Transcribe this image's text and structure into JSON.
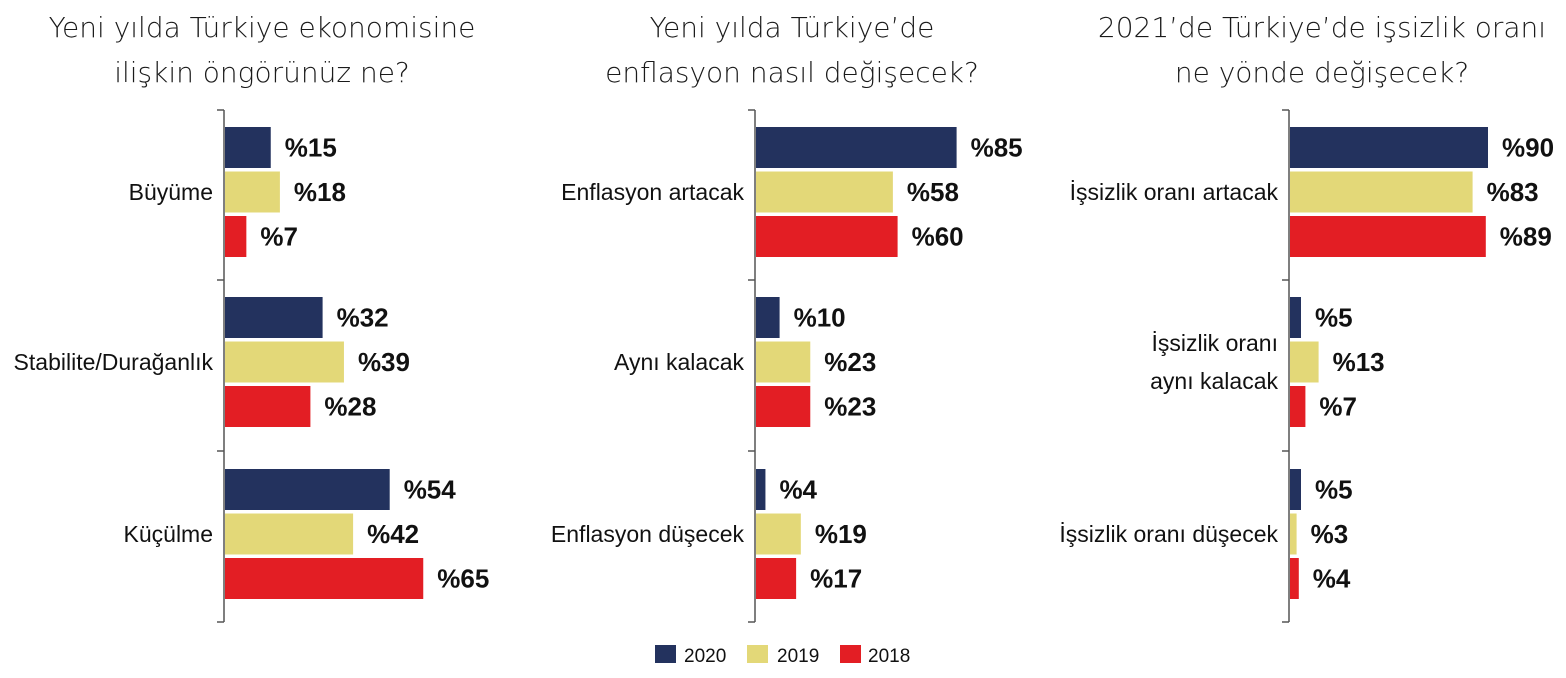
{
  "colors": {
    "2020": "#23325e",
    "2019": "#e3d878",
    "2018": "#e31e24"
  },
  "legend": [
    {
      "label": "2020",
      "color": "#23325e"
    },
    {
      "label": "2019",
      "color": "#e3d878"
    },
    {
      "label": "2018",
      "color": "#e31e24"
    }
  ],
  "chart_data": [
    {
      "type": "bar",
      "orientation": "horizontal",
      "title": [
        "Yeni yılda Türkiye ekonomisine",
        "ilişkin öngörünüz ne?"
      ],
      "categories": [
        [
          "Büyüme"
        ],
        [
          "Stabilite/Durağanlık"
        ],
        [
          "Küçülme"
        ]
      ],
      "series": [
        {
          "name": "2020",
          "values": [
            15,
            32,
            54
          ],
          "labels": [
            "%15",
            "%32",
            "%54"
          ]
        },
        {
          "name": "2019",
          "values": [
            18,
            39,
            42
          ],
          "labels": [
            "%18",
            "%39",
            "%42"
          ]
        },
        {
          "name": "2018",
          "values": [
            7,
            28,
            65
          ],
          "labels": [
            "%7",
            "%28",
            "%65"
          ]
        }
      ]
    },
    {
      "type": "bar",
      "orientation": "horizontal",
      "title": [
        "Yeni yılda Türkiye’de",
        "enflasyon nasıl değişecek?"
      ],
      "categories": [
        [
          "Enflasyon artacak"
        ],
        [
          "Aynı kalacak"
        ],
        [
          "Enflasyon düşecek"
        ]
      ],
      "series": [
        {
          "name": "2020",
          "values": [
            85,
            10,
            4
          ],
          "labels": [
            "%85",
            "%10",
            "%4"
          ]
        },
        {
          "name": "2019",
          "values": [
            58,
            23,
            19
          ],
          "labels": [
            "%58",
            "%23",
            "%19"
          ]
        },
        {
          "name": "2018",
          "values": [
            60,
            23,
            17
          ],
          "labels": [
            "%60",
            "%23",
            "%17"
          ]
        }
      ]
    },
    {
      "type": "bar",
      "orientation": "horizontal",
      "title": [
        "2021’de Türkiye’de işsizlik oranı",
        "ne yönde değişecek?"
      ],
      "categories": [
        [
          "İşsizlik oranı artacak"
        ],
        [
          "İşsizlik oranı",
          "aynı kalacak"
        ],
        [
          "İşsizlik oranı düşecek"
        ]
      ],
      "series": [
        {
          "name": "2020",
          "values": [
            90,
            5,
            5
          ],
          "labels": [
            "%90",
            "%5",
            "%5"
          ]
        },
        {
          "name": "2019",
          "values": [
            83,
            13,
            3
          ],
          "labels": [
            "%83",
            "%13",
            "%3"
          ]
        },
        {
          "name": "2018",
          "values": [
            89,
            7,
            4
          ],
          "labels": [
            "%89",
            "%7",
            "%4"
          ]
        }
      ]
    }
  ]
}
